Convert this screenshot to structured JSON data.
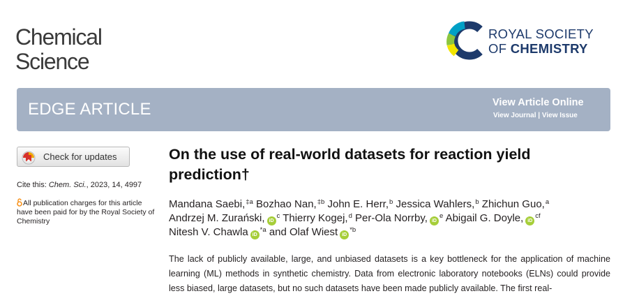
{
  "journal": {
    "line1": "Chemical",
    "line2": "Science"
  },
  "publisher": {
    "line1": "ROYAL SOCIETY",
    "line2_prefix": "OF ",
    "line2_bold": "CHEMISTRY"
  },
  "banner": {
    "title": "EDGE ARTICLE",
    "view_online": "View Article Online",
    "view_journal": "View Journal",
    "separator": " | ",
    "view_issue": "View Issue"
  },
  "sidebar": {
    "check_updates": "Check for updates",
    "cite_label": "Cite this: ",
    "cite_journal": "Chem. Sci.",
    "cite_rest": ", 2023, 14, 4997",
    "open_access": "All publication charges for this article have been paid for by the Royal Society of Chemistry"
  },
  "article": {
    "title": "On the use of real-world datasets for reaction yield prediction†",
    "authors": {
      "a1": "Mandana Saebi,",
      "s1": "‡a",
      "a2": " Bozhao Nan,",
      "s2": "‡b",
      "a3": " John E. Herr,",
      "s3": "b",
      "a4": " Jessica Wahlers,",
      "s4": "b",
      "a5": " Zhichun Guo,",
      "s5": "a",
      "a6": "Andrzej M. Zurański,",
      "s6": "c",
      "a7": " Thierry Kogej,",
      "s7": "d",
      "a8": " Per-Ola Norrby,",
      "s8": "e",
      "a9": " Abigail G. Doyle,",
      "s9": "cf",
      "a10": "Nitesh V. Chawla",
      "s10": "*a",
      "a11": " and Olaf Wiest",
      "s11": "*b"
    },
    "abstract": "The lack of publicly available, large, and unbiased datasets is a key bottleneck for the application of machine learning (ML) methods in synthetic chemistry. Data from electronic laboratory notebooks (ELNs) could provide less biased, large datasets, but no such datasets have been made publicly available. The first real-"
  },
  "colors": {
    "banner": "#a4b1c4",
    "rsc_blue": "#1d3a6b",
    "orcid": "#a6ce39",
    "oa_orange": "#f7931e"
  },
  "icons": [
    "rsc-logo-icon",
    "check-updates-icon",
    "open-access-icon",
    "orcid-icon"
  ]
}
